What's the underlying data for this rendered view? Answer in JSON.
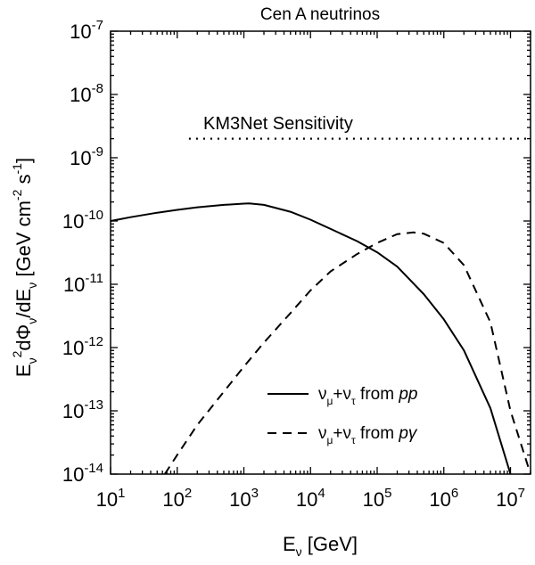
{
  "chart_data": {
    "type": "line",
    "title": "Cen A neutrinos",
    "xscale": "log",
    "yscale": "log",
    "xlim": [
      10,
      20000000
    ],
    "ylim": [
      1e-14,
      1e-07
    ],
    "xticks": [
      {
        "value": 10,
        "base": "10",
        "exp": "1"
      },
      {
        "value": 100,
        "base": "10",
        "exp": "2"
      },
      {
        "value": 1000,
        "base": "10",
        "exp": "3"
      },
      {
        "value": 10000,
        "base": "10",
        "exp": "4"
      },
      {
        "value": 100000,
        "base": "10",
        "exp": "5"
      },
      {
        "value": 1000000,
        "base": "10",
        "exp": "6"
      },
      {
        "value": 10000000,
        "base": "10",
        "exp": "7"
      }
    ],
    "yticks": [
      {
        "value": 1e-14,
        "base": "10",
        "exp": "-14"
      },
      {
        "value": 1e-13,
        "base": "10",
        "exp": "-13"
      },
      {
        "value": 1e-12,
        "base": "10",
        "exp": "-12"
      },
      {
        "value": 1e-11,
        "base": "10",
        "exp": "-11"
      },
      {
        "value": 1e-10,
        "base": "10",
        "exp": "-10"
      },
      {
        "value": 1e-09,
        "base": "10",
        "exp": "-9"
      },
      {
        "value": 1e-08,
        "base": "10",
        "exp": "-8"
      },
      {
        "value": 1e-07,
        "base": "10",
        "exp": "-7"
      }
    ],
    "xlabel": {
      "main": "E",
      "sub": "ν",
      "rest": " [GeV]"
    },
    "ylabel": {
      "p1": "E",
      "p1_sub": "ν",
      "p1_sup": "2",
      "p2": "dΦ",
      "p2_sub": "ν",
      "p3": "/dE",
      "p3_sub": "ν",
      "p4": " [GeV cm",
      "p4_sup": "-2",
      "p5": " s",
      "p5_sup": "-1",
      "p6": "]"
    },
    "annotation": "KM3Net Sensitivity",
    "series": [
      {
        "name": "ν_μ+ν_τ from pp",
        "legend": {
          "nu": "ν",
          "sub1": "μ",
          "plus": "+",
          "sub2": "τ",
          "from": " from ",
          "proc": "pp"
        },
        "style": "solid",
        "x": [
          10,
          20,
          50,
          100,
          200,
          500,
          1000,
          1200,
          2000,
          5000,
          10000,
          20000,
          50000,
          100000,
          200000,
          500000,
          1000000,
          2000000,
          5000000,
          10000000
        ],
        "y": [
          1e-10,
          1.15e-10,
          1.35e-10,
          1.5e-10,
          1.65e-10,
          1.8e-10,
          1.88e-10,
          1.9e-10,
          1.8e-10,
          1.4e-10,
          1.05e-10,
          7.5e-11,
          4.8e-11,
          3.2e-11,
          1.9e-11,
          7e-12,
          2.8e-12,
          9e-13,
          1.1e-13,
          1e-14
        ]
      },
      {
        "name": "ν_μ+ν_τ from pγ",
        "legend": {
          "nu": "ν",
          "sub1": "μ",
          "plus": "+",
          "sub2": "τ",
          "from": " from ",
          "proc": "pγ"
        },
        "style": "dashed",
        "x": [
          65,
          100,
          200,
          500,
          1000,
          2000,
          5000,
          10000,
          20000,
          50000,
          100000,
          200000,
          350000,
          500000,
          1000000,
          2000000,
          5000000,
          10000000,
          20000000
        ],
        "y": [
          1e-14,
          2e-14,
          6e-14,
          2e-13,
          5e-13,
          1.2e-12,
          3.5e-12,
          8e-12,
          1.6e-11,
          3e-11,
          4.5e-11,
          6.2e-11,
          6.6e-11,
          6.3e-11,
          4.5e-11,
          2e-11,
          2.5e-12,
          1e-13,
          1e-14
        ]
      },
      {
        "name": "KM3Net Sensitivity",
        "style": "dotted",
        "x": [
          150,
          20000000
        ],
        "y": [
          2e-09,
          2e-09
        ]
      }
    ]
  }
}
